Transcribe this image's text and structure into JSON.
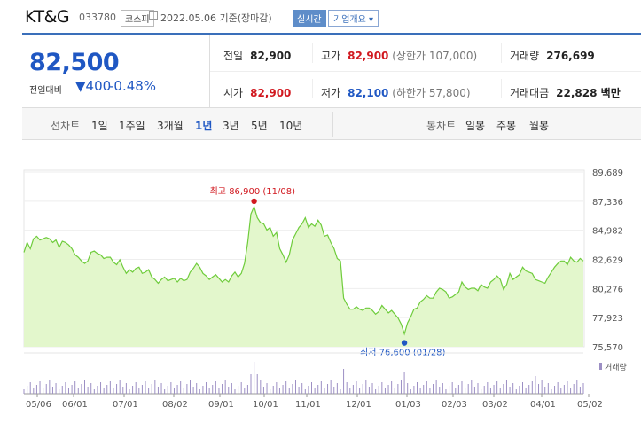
{
  "header": {
    "name": "KT&G",
    "code": "033780",
    "market": "코스피",
    "date": "2022.05.06 기준(장마감)",
    "realtime": "실시간",
    "company_button": "기업개요"
  },
  "price": {
    "current": "82,500",
    "change_label": "전일대비",
    "change": "400",
    "change_pct": "-0.48%"
  },
  "stats": {
    "prev_label": "전일",
    "prev": "82,900",
    "high_label": "고가",
    "high": "82,900",
    "upper_limit": "(상한가 107,000)",
    "volume_label": "거래량",
    "volume": "276,699",
    "open_label": "시가",
    "open": "82,900",
    "low_label": "저가",
    "low": "82,100",
    "lower_limit": "(하한가 57,800)",
    "amount_label": "거래대금",
    "amount": "22,828 백만"
  },
  "periods": {
    "line_label": "선차트",
    "items": [
      "1일",
      "1주일",
      "3개월",
      "1년",
      "3년",
      "5년",
      "10년"
    ],
    "active": "1년",
    "candle_label": "봉차트",
    "candles": [
      "일봉",
      "주봉",
      "월봉"
    ]
  },
  "chart_data": {
    "type": "area",
    "y_ticks": [
      "89,689",
      "87,336",
      "84,982",
      "82,629",
      "80,276",
      "77,923",
      "75,570"
    ],
    "ylim": [
      75570,
      89689
    ],
    "x_ticks": [
      "05/06",
      "06/01",
      "07/01",
      "08/02",
      "09/01",
      "10/01",
      "11/01",
      "12/01",
      "01/03",
      "02/03",
      "03/02",
      "04/01",
      "05/02"
    ],
    "high_label": "최고 86,900 (11/08)",
    "low_label": "최저 76,600 (01/28)",
    "volume_legend": "거래량",
    "values": [
      83200,
      84000,
      83500,
      84300,
      84500,
      84200,
      84300,
      84400,
      84300,
      84000,
      84200,
      83600,
      84100,
      84000,
      83800,
      83500,
      83000,
      82800,
      82500,
      82300,
      82500,
      83200,
      83300,
      83100,
      83000,
      82700,
      82800,
      82800,
      82400,
      82200,
      82600,
      82000,
      81500,
      81800,
      81600,
      81900,
      82000,
      81500,
      81600,
      81800,
      81200,
      81000,
      80700,
      81000,
      81200,
      80900,
      81000,
      81100,
      80800,
      81100,
      80900,
      81000,
      81600,
      81900,
      82300,
      82000,
      81500,
      81300,
      81000,
      81200,
      81400,
      81100,
      80800,
      81000,
      80800,
      81300,
      81600,
      81200,
      81500,
      82300,
      84000,
      86300,
      86900,
      86000,
      85600,
      85500,
      85000,
      85200,
      84500,
      84800,
      83500,
      83000,
      82400,
      83000,
      84200,
      84700,
      85200,
      85500,
      86000,
      85200,
      85500,
      85300,
      85800,
      85400,
      84500,
      84600,
      84000,
      83500,
      82700,
      82500,
      79500,
      79000,
      78600,
      78600,
      78800,
      78600,
      78500,
      78700,
      78700,
      78500,
      78200,
      78400,
      78900,
      78600,
      78300,
      78500,
      78200,
      77900,
      77400,
      76600,
      77500,
      78000,
      78600,
      78700,
      79200,
      79400,
      79700,
      79500,
      79500,
      80000,
      80300,
      80200,
      80000,
      79500,
      79600,
      79800,
      80000,
      80800,
      80400,
      80200,
      80300,
      80300,
      80100,
      80600,
      80400,
      80300,
      80800,
      81000,
      81300,
      81000,
      80200,
      80600,
      81500,
      81000,
      81200,
      81400,
      82000,
      81700,
      81600,
      81500,
      81000,
      80900,
      80800,
      80700,
      81200,
      81600,
      82000,
      82300,
      82500,
      82500,
      82200,
      82800,
      82500,
      82400,
      82700,
      82500
    ],
    "high_index": 72,
    "low_index": 119
  },
  "colors": {
    "blue": "#1f57c3",
    "red": "#d1181f",
    "area": "#e3f7cc",
    "line": "#6fcc3c"
  }
}
